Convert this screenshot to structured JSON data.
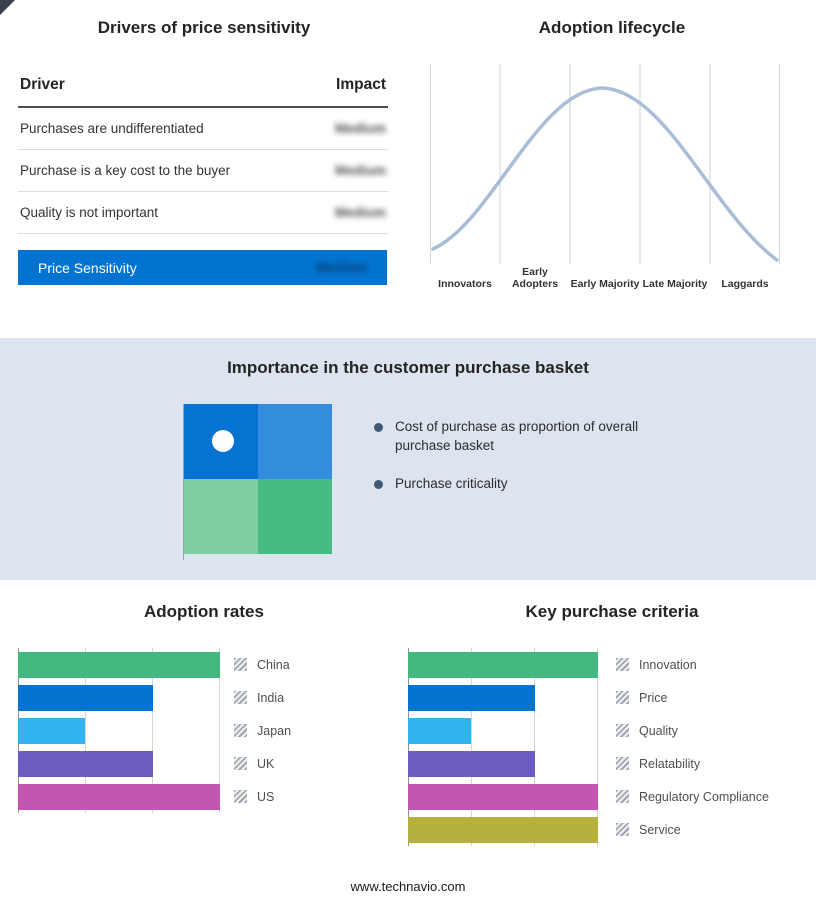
{
  "page": {
    "footer": "www.technavio.com",
    "band_bg": "#dce4ef",
    "accent_blue": "#0273d0"
  },
  "drivers": {
    "title": "Drivers of price sensitivity",
    "columns": {
      "driver": "Driver",
      "impact": "Impact"
    },
    "rows": [
      {
        "driver": "Purchases are undifferentiated",
        "impact": "Medium"
      },
      {
        "driver": "Purchase is a key cost to the buyer",
        "impact": "Medium"
      },
      {
        "driver": "Quality is not important",
        "impact": "Medium"
      }
    ],
    "summary": {
      "label": "Price Sensitivity",
      "impact": "Medium"
    }
  },
  "lifecycle": {
    "title": "Adoption lifecycle",
    "stages": [
      "Innovators",
      "Early Adopters",
      "Early Majority",
      "Late Majority",
      "Laggards"
    ],
    "curve_color": "#a9bdd6"
  },
  "basket": {
    "title": "Importance in the customer purchase basket",
    "bullets": [
      "Cost of purchase as proportion of overall purchase basket",
      "Purchase criticality"
    ],
    "matrix_colors": [
      "#0673d2",
      "#348ddc",
      "#7fcea2",
      "#46bb82"
    ]
  },
  "adoption_rates": {
    "title": "Adoption rates",
    "max": 3,
    "bars": [
      {
        "label": "China",
        "value": 3,
        "color": "#43b97f"
      },
      {
        "label": "India",
        "value": 2,
        "color": "#0473cf"
      },
      {
        "label": "Japan",
        "value": 1,
        "color": "#31b4ef"
      },
      {
        "label": "UK",
        "value": 2,
        "color": "#6a5cc0"
      },
      {
        "label": "US",
        "value": 3,
        "color": "#c256b2"
      }
    ]
  },
  "criteria": {
    "title": "Key purchase criteria",
    "max": 3,
    "bars": [
      {
        "label": "Innovation",
        "value": 3,
        "color": "#43b97f"
      },
      {
        "label": "Price",
        "value": 2,
        "color": "#0473cf"
      },
      {
        "label": "Quality",
        "value": 1,
        "color": "#31b4ef"
      },
      {
        "label": "Relatability",
        "value": 2,
        "color": "#6a5cc0"
      },
      {
        "label": "Regulatory Compliance",
        "value": 3,
        "color": "#c256b2"
      },
      {
        "label": "Service",
        "value": 3,
        "color": "#b6b13d"
      }
    ]
  },
  "chart_data": [
    {
      "type": "table",
      "title": "Drivers of price sensitivity",
      "columns": [
        "Driver",
        "Impact"
      ],
      "rows": [
        [
          "Purchases are undifferentiated",
          "Medium"
        ],
        [
          "Purchase is a key cost to the buyer",
          "Medium"
        ],
        [
          "Quality is not important",
          "Medium"
        ],
        [
          "Price Sensitivity",
          "Medium"
        ]
      ],
      "note": "Impact values appear blurred/redacted in the image"
    },
    {
      "type": "line",
      "title": "Adoption lifecycle",
      "categories": [
        "Innovators",
        "Early Adopters",
        "Early Majority",
        "Late Majority",
        "Laggards"
      ],
      "shape": "bell curve rising from Innovators, peaking over Early Majority, falling to Laggards",
      "grid": "vertical stage dividers",
      "legend_position": "none"
    },
    {
      "type": "bar",
      "title": "Adoption rates",
      "orientation": "horizontal",
      "categories": [
        "China",
        "India",
        "Japan",
        "UK",
        "US"
      ],
      "values": [
        3,
        2,
        1,
        2,
        3
      ],
      "xlim": [
        0,
        3
      ],
      "grid": "vertical",
      "legend_position": "right"
    },
    {
      "type": "bar",
      "title": "Key purchase criteria",
      "orientation": "horizontal",
      "categories": [
        "Innovation",
        "Price",
        "Quality",
        "Relatability",
        "Regulatory Compliance",
        "Service"
      ],
      "values": [
        3,
        2,
        1,
        2,
        3,
        3
      ],
      "xlim": [
        0,
        3
      ],
      "grid": "vertical",
      "legend_position": "right"
    }
  ]
}
